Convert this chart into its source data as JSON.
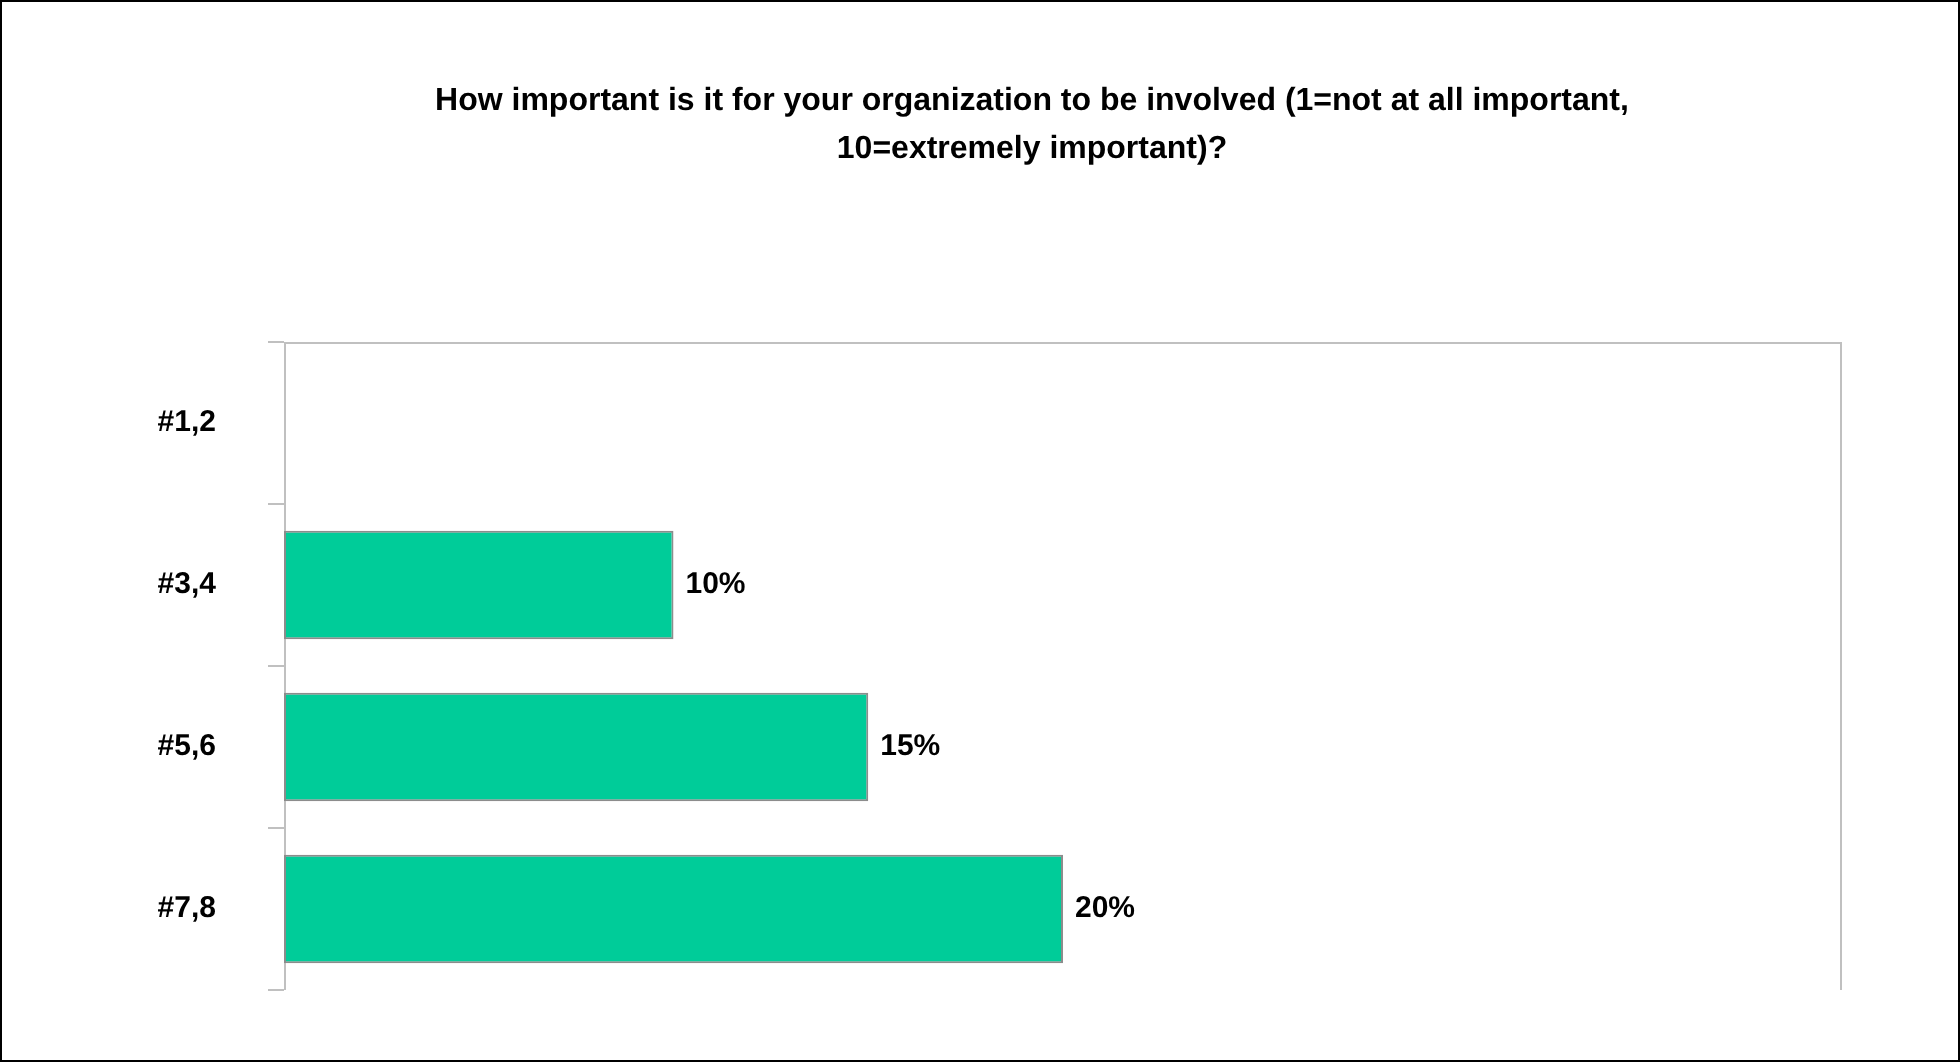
{
  "chart_data": {
    "type": "bar",
    "orientation": "horizontal",
    "title": "How important is it for your organization to be involved (1=not at all important, 10=extremely important)?",
    "categories": [
      "#1,2",
      "#3,4",
      "#5,6",
      "#7,8"
    ],
    "values": [
      null,
      10,
      15,
      20
    ],
    "color": "#00cc99",
    "value_labels": [
      null,
      "10%",
      "15%",
      "20%"
    ],
    "grid": false,
    "legend": false,
    "tick_labels": "y"
  }
}
